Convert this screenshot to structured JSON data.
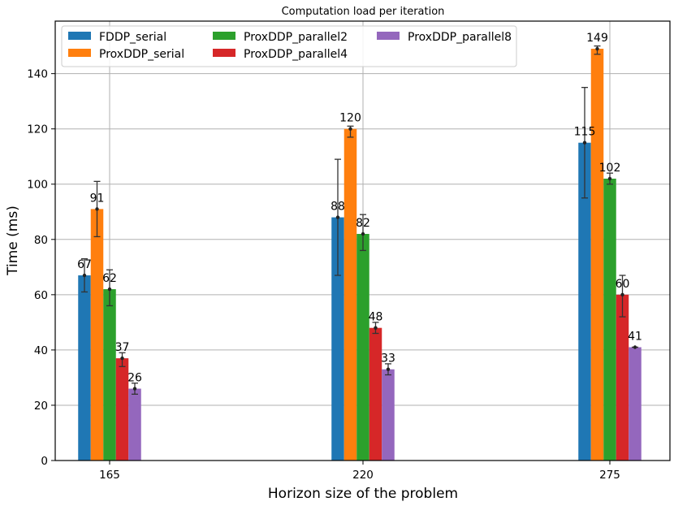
{
  "chart_data": {
    "type": "bar",
    "title": "Computation load per iteration",
    "xlabel": "Horizon size of the problem",
    "ylabel": "Time (ms)",
    "categories": [
      "165",
      "220",
      "275"
    ],
    "ylim": [
      0,
      159
    ],
    "yticks": [
      0,
      20,
      40,
      60,
      80,
      100,
      120,
      140
    ],
    "grid": true,
    "legend_position": "top-left",
    "series": [
      {
        "name": "FDDP_serial",
        "color": "#1f77b4",
        "values": [
          67,
          88,
          115
        ],
        "labels": [
          "67",
          "88",
          "115"
        ],
        "err_low": [
          61,
          67,
          95
        ],
        "err_high": [
          73,
          109,
          135
        ]
      },
      {
        "name": "ProxDDP_serial",
        "color": "#ff7f0e",
        "values": [
          91,
          120,
          149
        ],
        "labels": [
          "91",
          "120",
          "149"
        ],
        "err_low": [
          81,
          117,
          147
        ],
        "err_high": [
          101,
          121,
          150
        ]
      },
      {
        "name": "ProxDDP_parallel2",
        "color": "#2ca02c",
        "values": [
          62,
          82,
          102
        ],
        "labels": [
          "62",
          "82",
          "102"
        ],
        "err_low": [
          56,
          76,
          100
        ],
        "err_high": [
          69,
          89,
          104
        ]
      },
      {
        "name": "ProxDDP_parallel4",
        "color": "#d62728",
        "values": [
          37,
          48,
          60
        ],
        "labels": [
          "37",
          "48",
          "60"
        ],
        "err_low": [
          34,
          46,
          52
        ],
        "err_high": [
          39,
          50,
          67
        ]
      },
      {
        "name": "ProxDDP_parallel8",
        "color": "#9467bd",
        "values": [
          26,
          33,
          41
        ],
        "labels": [
          "26",
          "33",
          "41"
        ],
        "err_low": [
          24,
          31,
          41
        ],
        "err_high": [
          28,
          35,
          41
        ]
      }
    ]
  }
}
